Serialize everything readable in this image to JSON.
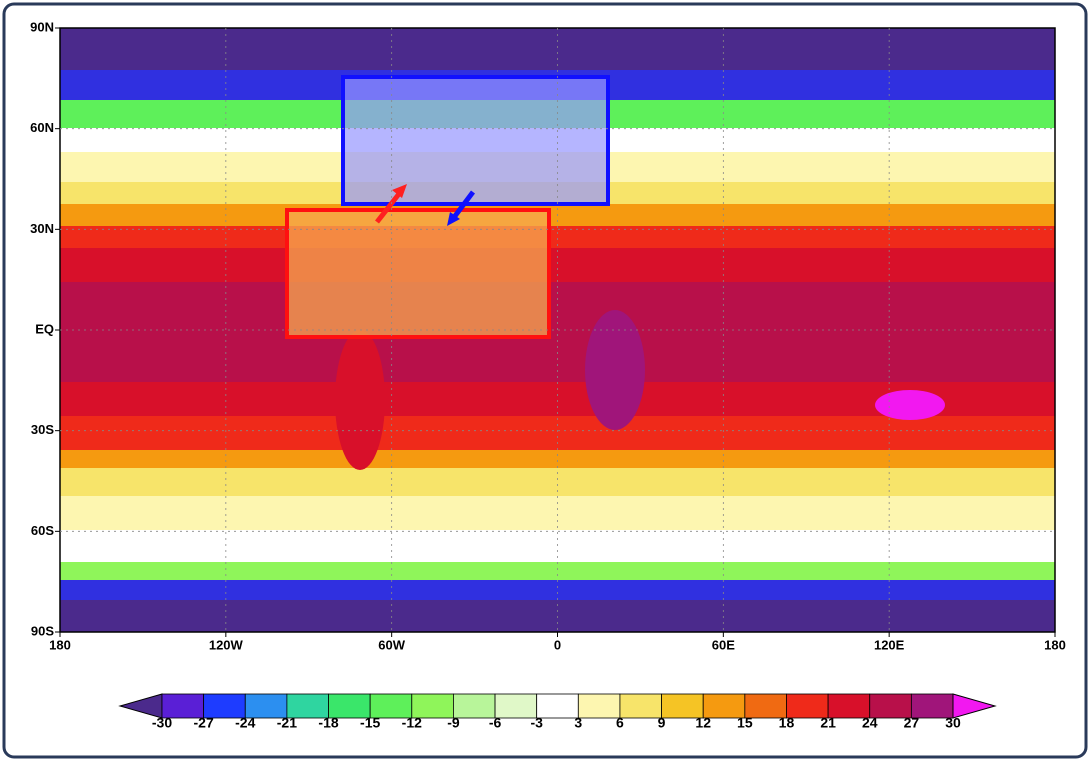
{
  "map": {
    "lat_labels": [
      "90N",
      "60N",
      "30N",
      "EQ",
      "30S",
      "60S",
      "90S"
    ],
    "lon_labels": [
      "180",
      "120W",
      "60W",
      "0",
      "60E",
      "120E",
      "180"
    ],
    "colorbar": {
      "labels": [
        "-30",
        "-27",
        "-24",
        "-21",
        "-18",
        "-15",
        "-12",
        "-9",
        "-6",
        "-3",
        "3",
        "6",
        "9",
        "12",
        "15",
        "18",
        "21",
        "24",
        "27",
        "30"
      ],
      "colors": [
        "#4b2a8c",
        "#5a1fd6",
        "#1e3cff",
        "#2c8ff0",
        "#2fd5a0",
        "#3ae66a",
        "#5ef05a",
        "#8ff55a",
        "#b8f59a",
        "#e0f8c8",
        "#ffffff",
        "#fdf6b0",
        "#f7e46a",
        "#f5c425",
        "#f59a10",
        "#f06a12",
        "#ef2a1a",
        "#d8102a",
        "#b8104a",
        "#a0157a",
        "#f218f0"
      ]
    }
  }
}
